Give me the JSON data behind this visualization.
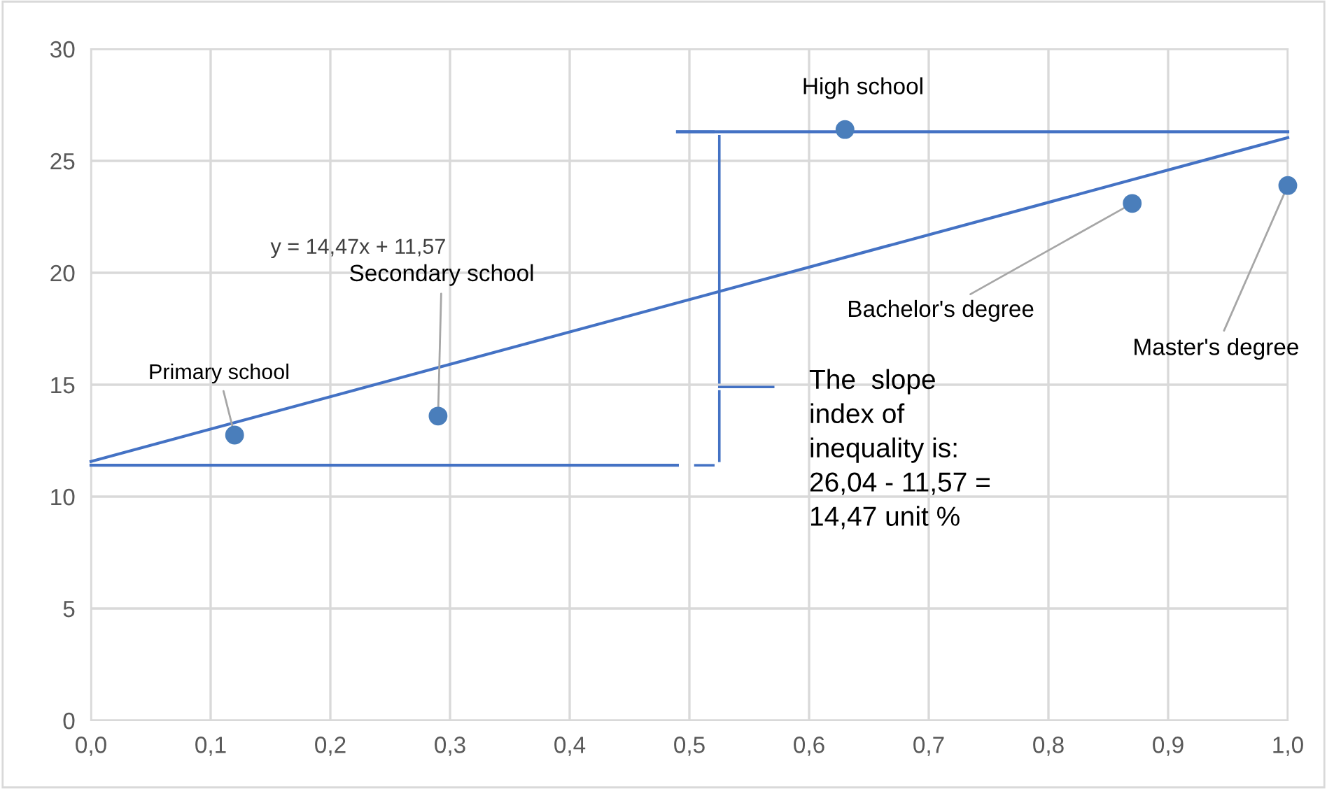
{
  "chart_data": {
    "type": "scatter",
    "xlim": [
      0.0,
      1.0
    ],
    "ylim": [
      0,
      30
    ],
    "xticks": [
      {
        "value": 0.0,
        "label": "0,0"
      },
      {
        "value": 0.1,
        "label": "0,1"
      },
      {
        "value": 0.2,
        "label": "0,2"
      },
      {
        "value": 0.3,
        "label": "0,3"
      },
      {
        "value": 0.4,
        "label": "0,4"
      },
      {
        "value": 0.5,
        "label": "0,5"
      },
      {
        "value": 0.6,
        "label": "0,6"
      },
      {
        "value": 0.7,
        "label": "0,7"
      },
      {
        "value": 0.8,
        "label": "0,8"
      },
      {
        "value": 0.9,
        "label": "0,9"
      },
      {
        "value": 1.0,
        "label": "1,0"
      }
    ],
    "yticks": [
      0,
      5,
      10,
      15,
      20,
      25,
      30
    ],
    "grid": true,
    "legend": false,
    "series": [
      {
        "type": "line",
        "color": "#4472c4",
        "x": [
          0.0,
          1.0
        ],
        "values": [
          11.57,
          26.04
        ],
        "line_style": "solid"
      },
      {
        "type": "line",
        "color": "#4472c4",
        "x": [
          0.49,
          1.0
        ],
        "values": [
          26.3,
          26.3
        ],
        "line_style": "solid"
      },
      {
        "type": "line",
        "color": "#4472c4",
        "x": [
          0.0,
          0.49
        ],
        "values": [
          11.4,
          11.4
        ],
        "line_style": "solid"
      },
      {
        "marker": "circle",
        "color": "#4a7ebb",
        "x": [
          0.12,
          0.29,
          0.63,
          0.87,
          1.0
        ],
        "values": [
          12.75,
          13.6,
          26.4,
          23.1,
          23.9
        ]
      }
    ],
    "annotations": [
      {
        "text": "Primary school",
        "x": 0.12,
        "y": 12.75
      },
      {
        "text": "Secondary school",
        "x": 0.29,
        "y": 13.6
      },
      {
        "text": "High school",
        "x": 0.63,
        "y": 26.4
      },
      {
        "text": "Bachelor's degree",
        "x": 0.87,
        "y": 23.1
      },
      {
        "text": "Master's degree",
        "x": 1.0,
        "y": 23.9
      },
      "y = 14,47x + 11,57",
      "The  slope\nindex of\ninequality is:\n26,04 - 11,57 =\n14,47 unit %"
    ]
  }
}
